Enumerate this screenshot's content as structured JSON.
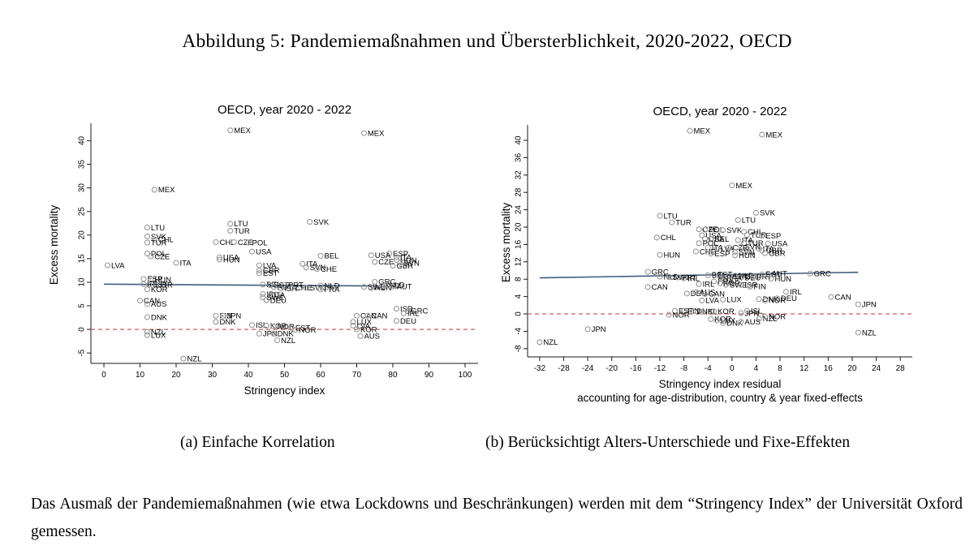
{
  "figure": {
    "title": "Abbildung 5: Pandemiemaßnahmen und Übersterblichkeit, 2020-2022, OECD",
    "caption_a": "(a) Einfache Korrelation",
    "caption_b": "(b) Berücksichtigt Alters-Unterschiede und Fixe-Effekten",
    "note": "Das Ausmaß der Pandemiemaßnahmen (wie etwa Lockdowns und Beschränkungen) werden mit dem “Stringency Index” der Universität Oxford gemessen."
  },
  "colors": {
    "fit_line": "#3f5d7d",
    "zero_line": "#cc5c5c",
    "marker": "#979797",
    "axis": "#1a1a1a",
    "label": "#000000"
  },
  "chart_data": [
    {
      "type": "scatter",
      "title": "OECD, year 2020 - 2022",
      "xlabel": [
        "Stringency index"
      ],
      "ylabel": "Excess mortality",
      "xlim": [
        -3.6,
        103.6
      ],
      "ylim": [
        -7.2,
        43.0
      ],
      "x_ticks": [
        0,
        10,
        20,
        30,
        40,
        50,
        60,
        70,
        80,
        90,
        100
      ],
      "y_ticks": [
        -5,
        0,
        5,
        10,
        15,
        20,
        25,
        30,
        35,
        40
      ],
      "grid": false,
      "zero_line_y": 0,
      "fit_line": {
        "x1": 0,
        "y1": 9.6,
        "x2": 76,
        "y2": 9.2
      },
      "points": [
        [
          35,
          42.2,
          "MEX"
        ],
        [
          72,
          41.6,
          "MEX"
        ],
        [
          14,
          29.6,
          "MEX"
        ],
        [
          57,
          22.8,
          "SVK"
        ],
        [
          35,
          22.4,
          "LTU"
        ],
        [
          12,
          21.6,
          "LTU"
        ],
        [
          35,
          20.9,
          "TUR"
        ],
        [
          12,
          19.7,
          "SVK"
        ],
        [
          14,
          19.1,
          "CHL"
        ],
        [
          12,
          18.4,
          "TUR"
        ],
        [
          31,
          18.5,
          "CHL"
        ],
        [
          36,
          18.5,
          "CZE"
        ],
        [
          40,
          18.4,
          "POL"
        ],
        [
          12,
          16.1,
          "POL"
        ],
        [
          13,
          15.5,
          "CZE"
        ],
        [
          41,
          16.5,
          "USA"
        ],
        [
          32,
          15.3,
          "USA"
        ],
        [
          32,
          14.8,
          "HUN"
        ],
        [
          60,
          15.6,
          "BEL"
        ],
        [
          79,
          16.1,
          "ESP"
        ],
        [
          74,
          15.7,
          "USA"
        ],
        [
          81,
          15.3,
          "ITA"
        ],
        [
          81,
          14.7,
          "HUN"
        ],
        [
          82,
          14.1,
          "SVN"
        ],
        [
          75,
          14.3,
          "CZE"
        ],
        [
          80,
          13.5,
          "GBR"
        ],
        [
          1,
          13.6,
          "LVA"
        ],
        [
          20,
          14.1,
          "ITA"
        ],
        [
          43,
          13.6,
          "LVA"
        ],
        [
          55,
          13.9,
          "ITA"
        ],
        [
          56,
          13.1,
          "SVN"
        ],
        [
          59,
          12.8,
          "CHE"
        ],
        [
          43,
          12.5,
          "GBR"
        ],
        [
          43,
          11.9,
          "EST"
        ],
        [
          11,
          10.7,
          "ESP"
        ],
        [
          13,
          10.6,
          "HUN"
        ],
        [
          11,
          9.6,
          "IRL"
        ],
        [
          12.5,
          9.5,
          "EST"
        ],
        [
          14.5,
          9.4,
          "ISR"
        ],
        [
          12,
          8.5,
          "KOR"
        ],
        [
          75,
          10.1,
          "GRC"
        ],
        [
          44,
          9.5,
          "BEL"
        ],
        [
          46,
          9.4,
          "EST"
        ],
        [
          47,
          9.0,
          "AUT"
        ],
        [
          50,
          9.4,
          "PRT"
        ],
        [
          49,
          8.7,
          "ISR"
        ],
        [
          52,
          8.8,
          "CHE"
        ],
        [
          56,
          8.8,
          "SVK"
        ],
        [
          60,
          9.3,
          "NLD"
        ],
        [
          60,
          8.5,
          "FRA"
        ],
        [
          72,
          9.0,
          "SWE"
        ],
        [
          74,
          8.8,
          "HUN"
        ],
        [
          77,
          9.2,
          "PRT"
        ],
        [
          78,
          9.4,
          "NLD"
        ],
        [
          80,
          9.1,
          "AUT"
        ],
        [
          44,
          7.5,
          "IRL"
        ],
        [
          46,
          7.3,
          "ITA"
        ],
        [
          44,
          6.8,
          "SWE"
        ],
        [
          45,
          6.2,
          "DEU"
        ],
        [
          10,
          6.1,
          "CAN"
        ],
        [
          12,
          5.4,
          "AUS"
        ],
        [
          12,
          2.6,
          "DNK"
        ],
        [
          31,
          2.9,
          "FIN"
        ],
        [
          33,
          2.9,
          "JPN"
        ],
        [
          31,
          1.6,
          "DNK"
        ],
        [
          81,
          4.4,
          "ISR"
        ],
        [
          84,
          3.9,
          "GRC"
        ],
        [
          83,
          3.4,
          "IRL"
        ],
        [
          81,
          1.8,
          "DEU"
        ],
        [
          70,
          2.9,
          "CAN"
        ],
        [
          73,
          2.9,
          "CAN"
        ],
        [
          69,
          1.6,
          "LUX"
        ],
        [
          69,
          0.8,
          "LVA"
        ],
        [
          70,
          0,
          "KOR"
        ],
        [
          71,
          -1.4,
          "AUS"
        ],
        [
          41,
          0.9,
          "ISL"
        ],
        [
          45,
          0.8,
          "KOR"
        ],
        [
          47,
          0.6,
          "NOR"
        ],
        [
          52,
          0.3,
          "EST"
        ],
        [
          53,
          -0.1,
          "NOR"
        ],
        [
          43,
          -0.9,
          "JPN"
        ],
        [
          47,
          -0.9,
          "DNK"
        ],
        [
          48,
          -2.3,
          "NZL"
        ],
        [
          12,
          -0.5,
          "NZL"
        ],
        [
          12,
          -1.2,
          "LUX"
        ],
        [
          22,
          -6.2,
          "NZL"
        ]
      ]
    },
    {
      "type": "scatter",
      "title": "OECD, year 2020 - 2022",
      "xlabel": [
        "Stringency index residual",
        "accounting for age-distribution, country & year fixed-effects"
      ],
      "ylabel": "Excess mortality",
      "xlim": [
        -34,
        30
      ],
      "ylim": [
        -9.9,
        42.8
      ],
      "x_ticks": [
        -32,
        -28,
        -24,
        -20,
        -16,
        -12,
        -8,
        -4,
        0,
        4,
        8,
        12,
        16,
        20,
        24,
        28
      ],
      "y_ticks": [
        -8,
        -4,
        0,
        4,
        8,
        12,
        16,
        20,
        24,
        28,
        32,
        36,
        40
      ],
      "grid": false,
      "zero_line_y": 0,
      "fit_line": {
        "x1": -32,
        "y1": 8.3,
        "x2": 21,
        "y2": 9.6
      },
      "points": [
        [
          -7,
          42.2,
          "MEX"
        ],
        [
          5,
          41.3,
          "MEX"
        ],
        [
          0,
          29.6,
          "MEX"
        ],
        [
          4,
          23.3,
          "SVK"
        ],
        [
          -12,
          22.6,
          "LTU"
        ],
        [
          1,
          21.6,
          "LTU"
        ],
        [
          -10,
          21.1,
          "TUR"
        ],
        [
          -5.5,
          19.5,
          "CZE"
        ],
        [
          -4.5,
          19.4,
          "POL"
        ],
        [
          -1.5,
          19.3,
          "SVK"
        ],
        [
          2,
          18.9,
          "CHL"
        ],
        [
          2.5,
          18.2,
          "TUR"
        ],
        [
          5,
          18,
          "ESP"
        ],
        [
          -5,
          18.1,
          "USA"
        ],
        [
          -12.5,
          17.6,
          "CHL"
        ],
        [
          -4.5,
          17.3,
          "USA"
        ],
        [
          -3.5,
          17.3,
          "BEL"
        ],
        [
          1,
          17,
          "ITA"
        ],
        [
          -5.5,
          16.3,
          "POL"
        ],
        [
          2,
          16.3,
          "TUR"
        ],
        [
          6,
          16.2,
          "USA"
        ],
        [
          -4,
          15.3,
          "ITA"
        ],
        [
          -2.5,
          15,
          "LVA"
        ],
        [
          -0.5,
          15.3,
          "CZE"
        ],
        [
          1.5,
          15.5,
          "SVN"
        ],
        [
          4.5,
          15,
          "ITA"
        ],
        [
          5,
          14.6,
          "GBR"
        ],
        [
          -6,
          14.4,
          "CHE"
        ],
        [
          0.5,
          14.3,
          "SVN"
        ],
        [
          5.5,
          14,
          "GBR"
        ],
        [
          -12,
          13.6,
          "HUN"
        ],
        [
          0.5,
          13.5,
          "HUN"
        ],
        [
          -3.5,
          13.9,
          "ESP"
        ],
        [
          -14,
          9.7,
          "GRC"
        ],
        [
          13,
          9.3,
          "GRC"
        ],
        [
          -12,
          8.6,
          "NLD"
        ],
        [
          -10.5,
          8.5,
          "SVK"
        ],
        [
          -9,
          8.4,
          "PRT"
        ],
        [
          -8,
          8.2,
          "IRL"
        ],
        [
          -4,
          8.9,
          "BEL"
        ],
        [
          -3,
          9.1,
          "EST"
        ],
        [
          -2,
          8.7,
          "CHE"
        ],
        [
          -1.5,
          8.3,
          "FRA"
        ],
        [
          -0.5,
          8.7,
          "SWE"
        ],
        [
          0.5,
          8.8,
          "NLD"
        ],
        [
          1.5,
          8.4,
          "DEU"
        ],
        [
          3.5,
          8.6,
          "PRT"
        ],
        [
          5,
          9.1,
          "EST"
        ],
        [
          6,
          9.3,
          "AUT"
        ],
        [
          6.5,
          8.1,
          "HUN"
        ],
        [
          -3,
          7.5,
          "FRA"
        ],
        [
          -2,
          7.1,
          "KOR"
        ],
        [
          -1,
          6.7,
          "SWE"
        ],
        [
          1.5,
          6.7,
          "ISR"
        ],
        [
          -5.5,
          6.9,
          "IRL"
        ],
        [
          -14,
          6.2,
          "CAN"
        ],
        [
          3,
          6.3,
          "FIN"
        ],
        [
          -7.5,
          4.7,
          "DEU"
        ],
        [
          -6,
          5,
          "AUS"
        ],
        [
          -4.5,
          4.6,
          "CAN"
        ],
        [
          9,
          5.1,
          "IRL"
        ],
        [
          16.5,
          3.9,
          "CAN"
        ],
        [
          7.5,
          3.6,
          "DEU"
        ],
        [
          -5,
          3.1,
          "LVA"
        ],
        [
          -1.5,
          3.3,
          "LUX"
        ],
        [
          4.5,
          3.4,
          "DNK"
        ],
        [
          5.5,
          3.1,
          "NOR"
        ],
        [
          -9.5,
          0.7,
          "EST"
        ],
        [
          -8,
          0.7,
          "FIN"
        ],
        [
          -6.5,
          0.6,
          "DNK"
        ],
        [
          -5,
          0.5,
          "ISL"
        ],
        [
          -3,
          0.6,
          "KOR"
        ],
        [
          2.5,
          0.7,
          "ISL"
        ],
        [
          1.5,
          0.2,
          "JPN"
        ],
        [
          -10.5,
          -0.2,
          "NOR"
        ],
        [
          -3.5,
          -1.2,
          "KOR"
        ],
        [
          -2.5,
          -1.5,
          "LUX"
        ],
        [
          -1.5,
          -2.1,
          "DNK"
        ],
        [
          1.5,
          -1.8,
          "AUS"
        ],
        [
          4.5,
          -1.1,
          "NZL"
        ],
        [
          5.5,
          -0.6,
          "NOR"
        ],
        [
          -24,
          -3.5,
          "JPN"
        ],
        [
          21,
          2.2,
          "JPN"
        ],
        [
          21,
          -4.3,
          "NZL"
        ],
        [
          -32,
          -6.5,
          "NZL"
        ]
      ]
    }
  ]
}
